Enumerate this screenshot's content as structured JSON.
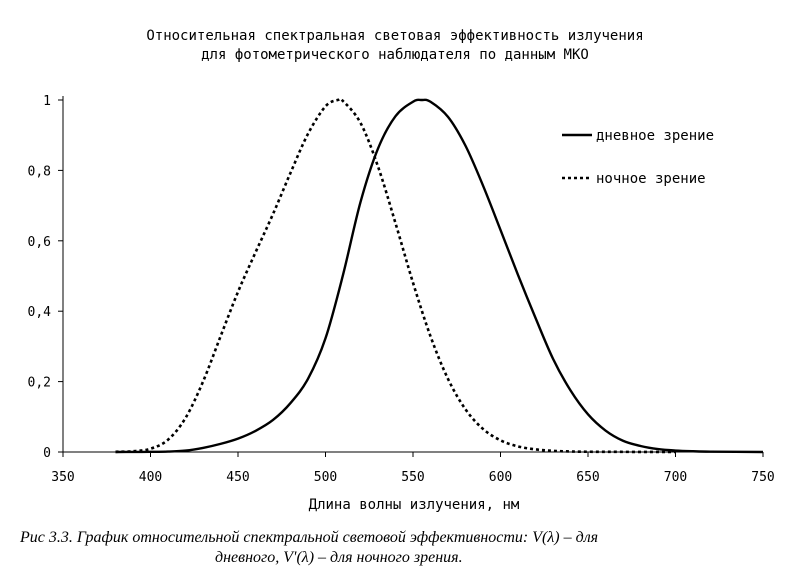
{
  "chart_data": {
    "type": "line",
    "title": [
      "Относительная спектральная световая эффективность излучения",
      "для фотометрического наблюдателя по данным МКО"
    ],
    "xlabel": "Длина волны излучения, нм",
    "ylabel": "",
    "xlim": [
      350,
      750
    ],
    "ylim": [
      0,
      1
    ],
    "x_ticks": [
      "350",
      "400",
      "450",
      "500",
      "550",
      "600",
      "650",
      "700",
      "750"
    ],
    "y_ticks": [
      "0",
      "0,2",
      "0,4",
      "0,6",
      "0,8",
      "1"
    ],
    "grid": false,
    "legend_position": "top-right",
    "series": [
      {
        "name": "дневное зрение",
        "style": "solid",
        "color": "#000000",
        "x": [
          380,
          390,
          400,
          410,
          420,
          430,
          440,
          450,
          460,
          470,
          480,
          490,
          500,
          510,
          520,
          530,
          540,
          550,
          555,
          560,
          570,
          580,
          590,
          600,
          610,
          620,
          630,
          640,
          650,
          660,
          670,
          680,
          690,
          700,
          710,
          720,
          750
        ],
        "y": [
          0.0,
          0.0001,
          0.0004,
          0.0012,
          0.004,
          0.0116,
          0.023,
          0.038,
          0.06,
          0.091,
          0.139,
          0.208,
          0.323,
          0.503,
          0.71,
          0.862,
          0.954,
          0.995,
          1.0,
          0.995,
          0.952,
          0.87,
          0.757,
          0.631,
          0.503,
          0.381,
          0.265,
          0.175,
          0.107,
          0.061,
          0.032,
          0.017,
          0.0082,
          0.0041,
          0.0021,
          0.001,
          0.0
        ]
      },
      {
        "name": "ночное зрение",
        "style": "dotted",
        "color": "#000000",
        "x": [
          380,
          390,
          400,
          410,
          420,
          430,
          440,
          450,
          460,
          470,
          480,
          490,
          500,
          507,
          510,
          520,
          530,
          540,
          550,
          560,
          570,
          580,
          590,
          600,
          610,
          620,
          630,
          640,
          650,
          700
        ],
        "y": [
          0.0006,
          0.0022,
          0.0093,
          0.0348,
          0.0966,
          0.1998,
          0.3281,
          0.455,
          0.567,
          0.676,
          0.793,
          0.904,
          0.982,
          1.0,
          0.997,
          0.935,
          0.811,
          0.65,
          0.481,
          0.3288,
          0.2076,
          0.1212,
          0.0655,
          0.0332,
          0.0159,
          0.0074,
          0.0033,
          0.0015,
          0.0007,
          0.0
        ]
      }
    ]
  },
  "caption": {
    "line1": "Рис 3.3. График относительной спектральной световой эффективности: V(λ) – для",
    "line2": "дневного, V'(λ) – для ночного зрения."
  }
}
